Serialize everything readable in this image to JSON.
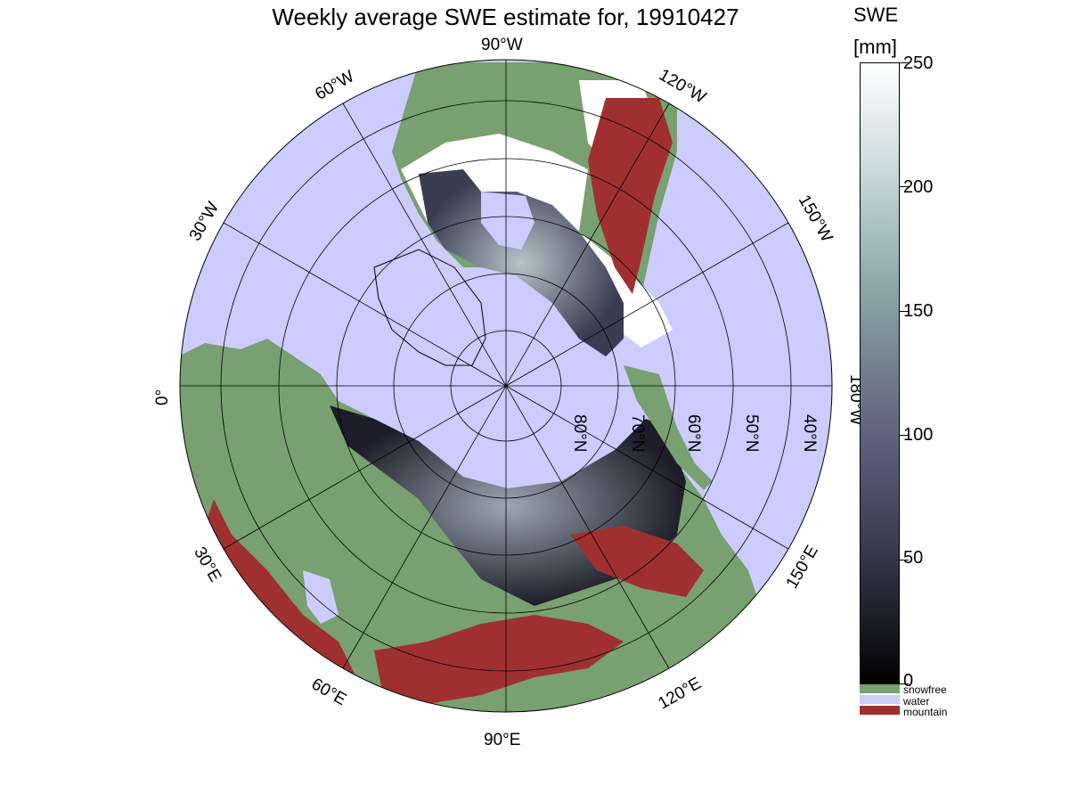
{
  "title": "Weekly average SWE estimate for, 19910427",
  "map": {
    "projection": "north-polar-stereographic",
    "longitude_labels": [
      "90°W",
      "120°W",
      "150°W",
      "180°W",
      "150°E",
      "120°E",
      "90°E",
      "60°E",
      "30°E",
      "0°",
      "30°W",
      "60°W"
    ],
    "latitude_labels": [
      "80°N",
      "70°N",
      "60°N",
      "50°N",
      "40°N"
    ],
    "colors": {
      "ocean": "#ccccff",
      "snowfree": "#78a070",
      "mountain": "#a03030",
      "snow_low": "#000000",
      "snow_high": "#ffffff"
    }
  },
  "colorbar": {
    "title_line1": "SWE",
    "title_line2": "[mm]",
    "min": 0,
    "max": 250,
    "ticks": [
      "250",
      "200",
      "150",
      "100",
      "50",
      "0"
    ],
    "legend": [
      {
        "label": "snowfree",
        "color": "#78a070"
      },
      {
        "label": "water",
        "color": "#ccccff"
      },
      {
        "label": "mountain",
        "color": "#a03030"
      }
    ]
  }
}
